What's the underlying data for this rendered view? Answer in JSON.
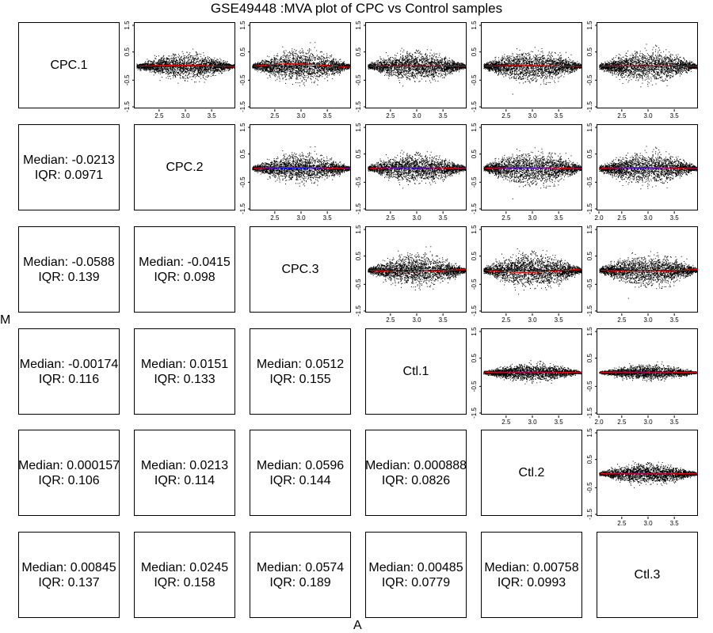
{
  "title": "GSE49448 :MVA plot of CPC vs Control samples",
  "xlabel": "A",
  "ylabel": "M",
  "samples": [
    "CPC.1",
    "CPC.2",
    "CPC.3",
    "Ctl.1",
    "Ctl.2",
    "Ctl.3"
  ],
  "colors": {
    "points": "#000000",
    "loess": "#ff0000",
    "zero_line": "#0000ff"
  },
  "chart_data": {
    "type": "scatter",
    "title": "GSE49448 :MVA plot of CPC vs Control samples",
    "xlabel": "A",
    "ylabel": "M",
    "ylim": [
      -1.5,
      1.5
    ],
    "xlim": [
      2.0,
      4.0
    ],
    "y_ticks": [
      "-1.5",
      "-0.5",
      "0.5",
      "1.5"
    ],
    "x_ticks_default": [
      "2.5",
      "3.0",
      "3.5"
    ],
    "x_ticks_with_2": [
      "2.0",
      "2.5",
      "3.0",
      "3.5"
    ],
    "grid": false,
    "statistics": [
      {
        "row": "CPC.2",
        "col": "CPC.1",
        "median_label": "Median: -0.0213",
        "iqr_label": "IQR: 0.0971"
      },
      {
        "row": "CPC.3",
        "col": "CPC.1",
        "median_label": "Median: -0.0588",
        "iqr_label": "IQR: 0.139"
      },
      {
        "row": "CPC.3",
        "col": "CPC.2",
        "median_label": "Median: -0.0415",
        "iqr_label": "IQR: 0.098"
      },
      {
        "row": "Ctl.1",
        "col": "CPC.1",
        "median_label": "Median: -0.00174",
        "iqr_label": "IQR: 0.116"
      },
      {
        "row": "Ctl.1",
        "col": "CPC.2",
        "median_label": "Median: 0.0151",
        "iqr_label": "IQR: 0.133"
      },
      {
        "row": "Ctl.1",
        "col": "CPC.3",
        "median_label": "Median: 0.0512",
        "iqr_label": "IQR: 0.155"
      },
      {
        "row": "Ctl.2",
        "col": "CPC.1",
        "median_label": "Median: 0.000157",
        "iqr_label": "IQR: 0.106"
      },
      {
        "row": "Ctl.2",
        "col": "CPC.2",
        "median_label": "Median: 0.0213",
        "iqr_label": "IQR: 0.114"
      },
      {
        "row": "Ctl.2",
        "col": "CPC.3",
        "median_label": "Median: 0.0596",
        "iqr_label": "IQR: 0.144"
      },
      {
        "row": "Ctl.2",
        "col": "Ctl.1",
        "median_label": "Median: 0.000888",
        "iqr_label": "IQR: 0.0826"
      },
      {
        "row": "Ctl.3",
        "col": "CPC.1",
        "median_label": "Median: 0.00845",
        "iqr_label": "IQR: 0.137"
      },
      {
        "row": "Ctl.3",
        "col": "CPC.2",
        "median_label": "Median: 0.0245",
        "iqr_label": "IQR: 0.158"
      },
      {
        "row": "Ctl.3",
        "col": "CPC.3",
        "median_label": "Median: 0.0574",
        "iqr_label": "IQR: 0.189"
      },
      {
        "row": "Ctl.3",
        "col": "Ctl.1",
        "median_label": "Median: 0.00485",
        "iqr_label": "IQR: 0.0779"
      },
      {
        "row": "Ctl.3",
        "col": "Ctl.2",
        "median_label": "Median: 0.00758",
        "iqr_label": "IQR: 0.0993"
      }
    ],
    "scatter_panels": [
      {
        "row": "CPC.1",
        "col": "CPC.2",
        "spread": 0.45,
        "loess_curve": 0.03,
        "x_ticks": "default"
      },
      {
        "row": "CPC.1",
        "col": "CPC.3",
        "spread": 0.55,
        "loess_curve": 0.08,
        "x_ticks": "default"
      },
      {
        "row": "CPC.1",
        "col": "Ctl.1",
        "spread": 0.5,
        "loess_curve": 0.01,
        "x_ticks": "default"
      },
      {
        "row": "CPC.1",
        "col": "Ctl.2",
        "spread": 0.55,
        "loess_curve": 0.02,
        "x_ticks": "default"
      },
      {
        "row": "CPC.1",
        "col": "Ctl.3",
        "spread": 0.55,
        "loess_curve": 0.01,
        "x_ticks": "default"
      },
      {
        "row": "CPC.2",
        "col": "CPC.3",
        "spread": 0.5,
        "loess_curve": 0.03,
        "x_ticks": "default"
      },
      {
        "row": "CPC.2",
        "col": "Ctl.1",
        "spread": 0.5,
        "loess_curve": 0.02,
        "x_ticks": "default"
      },
      {
        "row": "CPC.2",
        "col": "Ctl.2",
        "spread": 0.6,
        "loess_curve": 0.02,
        "x_ticks": "default"
      },
      {
        "row": "CPC.2",
        "col": "Ctl.3",
        "spread": 0.55,
        "loess_curve": 0.02,
        "x_ticks": "with_2"
      },
      {
        "row": "CPC.3",
        "col": "Ctl.1",
        "spread": 0.55,
        "loess_curve": -0.06,
        "x_ticks": "default"
      },
      {
        "row": "CPC.3",
        "col": "Ctl.2",
        "spread": 0.6,
        "loess_curve": -0.08,
        "x_ticks": "default"
      },
      {
        "row": "CPC.3",
        "col": "Ctl.3",
        "spread": 0.55,
        "loess_curve": -0.05,
        "x_ticks": "default"
      },
      {
        "row": "Ctl.1",
        "col": "Ctl.2",
        "spread": 0.3,
        "loess_curve": 0.01,
        "x_ticks": "default"
      },
      {
        "row": "Ctl.1",
        "col": "Ctl.3",
        "spread": 0.25,
        "loess_curve": 0.01,
        "x_ticks": "with_2"
      },
      {
        "row": "Ctl.2",
        "col": "Ctl.3",
        "spread": 0.35,
        "loess_curve": 0.01,
        "x_ticks": "default"
      }
    ]
  }
}
